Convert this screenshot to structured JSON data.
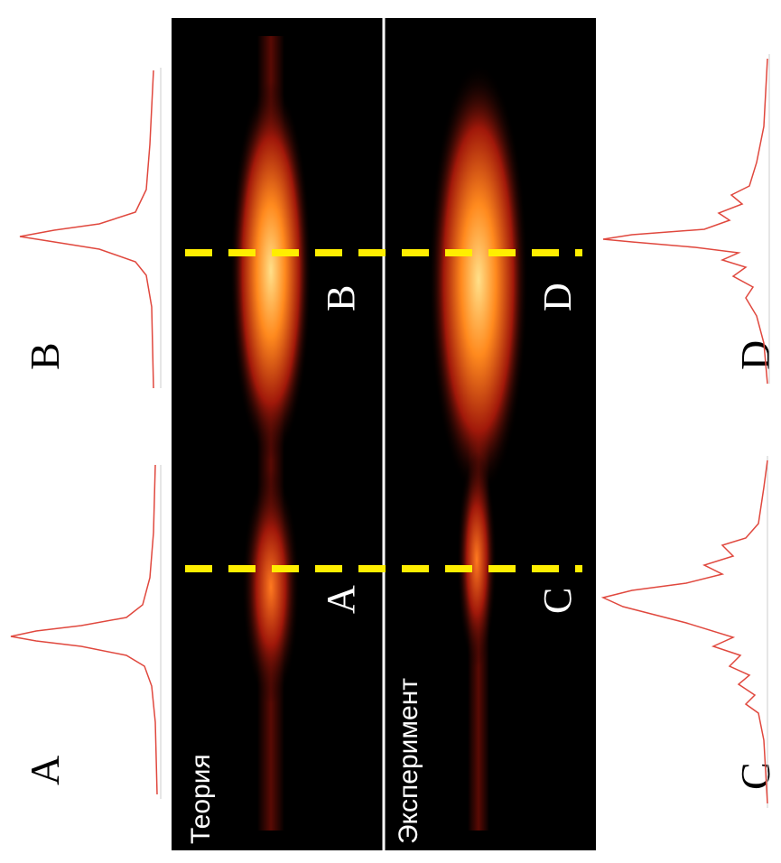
{
  "profile_labels": {
    "top": [
      "A",
      "B"
    ],
    "bottom": [
      "C",
      "D"
    ]
  },
  "panels": {
    "theory": {
      "title": "Теория",
      "markers": [
        "A",
        "B"
      ]
    },
    "experiment": {
      "title": "Эксперимент",
      "markers": [
        "C",
        "D"
      ]
    }
  }
}
